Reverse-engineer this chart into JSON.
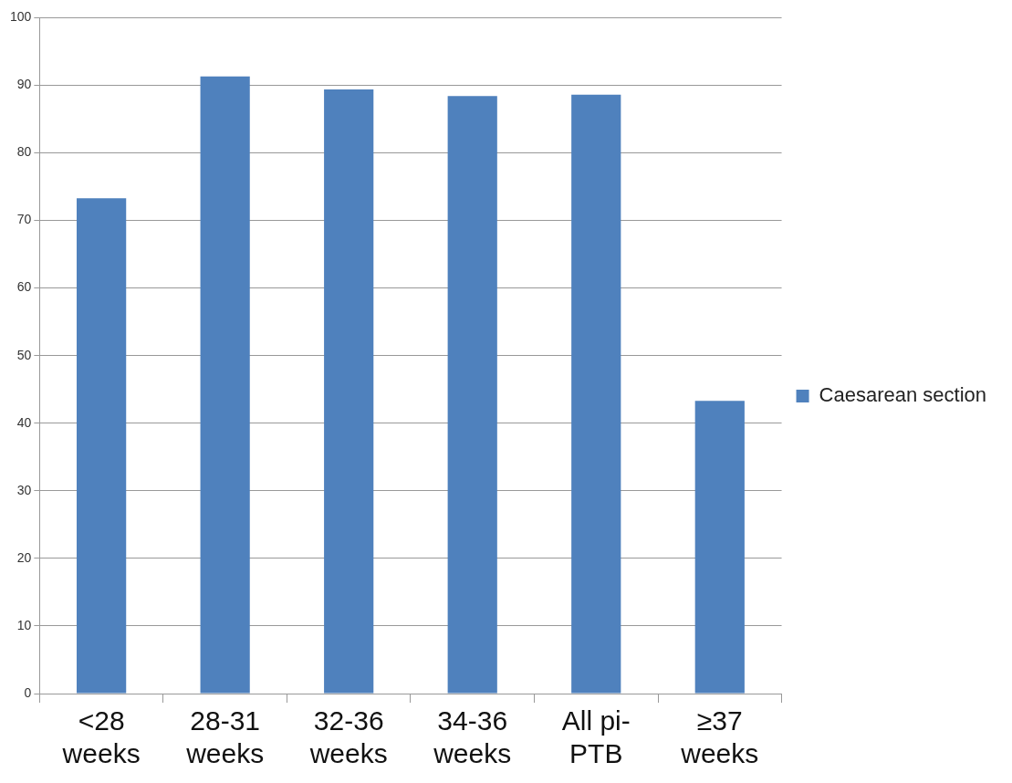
{
  "chart_data": {
    "type": "bar",
    "categories": [
      "<28 weeks",
      "28-31 weeks",
      "32-36 weeks",
      "34-36 weeks",
      "All pi-PTB",
      "≥37 weeks"
    ],
    "series": [
      {
        "name": "Caesarean section",
        "color": "#4f81bd",
        "values": [
          73.3,
          91.3,
          89.4,
          88.4,
          88.6,
          43.3
        ]
      }
    ],
    "ylim": [
      0,
      100
    ],
    "yticks": [
      0,
      10,
      20,
      30,
      40,
      50,
      60,
      70,
      80,
      90,
      100
    ],
    "grid": "y",
    "legend": "right"
  }
}
